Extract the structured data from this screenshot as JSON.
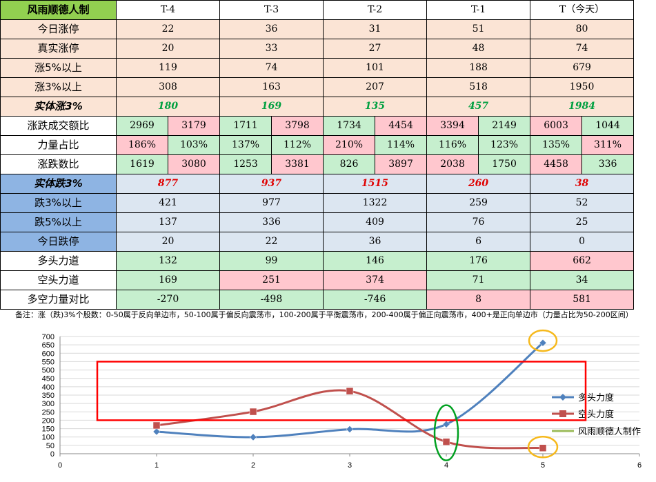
{
  "table": {
    "header": [
      "风雨顺德人制",
      "T-4",
      "T-3",
      "T-2",
      "T-1",
      "T（今天）"
    ],
    "rows_simple_top": [
      {
        "label": "今日涨停",
        "values": [
          "22",
          "36",
          "31",
          "51",
          "80"
        ]
      },
      {
        "label": "真实涨停",
        "values": [
          "20",
          "33",
          "27",
          "48",
          "74"
        ]
      },
      {
        "label": "涨5%以上",
        "values": [
          "119",
          "74",
          "101",
          "188",
          "679"
        ]
      },
      {
        "label": "涨3%以上",
        "values": [
          "308",
          "163",
          "207",
          "518",
          "1950"
        ]
      }
    ],
    "shiti_zhang": {
      "label": "实体涨3%",
      "values": [
        "180",
        "169",
        "135",
        "457",
        "1984"
      ]
    },
    "pair_rows": [
      {
        "label": "涨跌成交额比",
        "values": [
          "2969",
          "3179",
          "1711",
          "3798",
          "1734",
          "4454",
          "3394",
          "2149",
          "6003",
          "1044"
        ]
      },
      {
        "label": "力量占比",
        "values": [
          "186%",
          "103%",
          "137%",
          "112%",
          "210%",
          "114%",
          "116%",
          "123%",
          "135%",
          "311%"
        ]
      },
      {
        "label": "涨跌数比",
        "values": [
          "1619",
          "3080",
          "1253",
          "3381",
          "826",
          "3897",
          "2038",
          "1750",
          "4458",
          "336"
        ]
      }
    ],
    "shiti_die": {
      "label": "实体跌3%",
      "values": [
        "877",
        "937",
        "1515",
        "260",
        "38"
      ]
    },
    "rows_simple_bottom": [
      {
        "label": "跌3%以上",
        "values": [
          "421",
          "977",
          "1322",
          "259",
          "52"
        ]
      },
      {
        "label": "跌5%以上",
        "values": [
          "137",
          "336",
          "409",
          "76",
          "25"
        ]
      },
      {
        "label": "今日跌停",
        "values": [
          "20",
          "22",
          "36",
          "6",
          "0"
        ]
      }
    ],
    "force_rows": [
      {
        "label": "多头力道",
        "values": [
          "132",
          "99",
          "146",
          "176",
          "662"
        ]
      },
      {
        "label": "空头力道",
        "values": [
          "169",
          "251",
          "374",
          "71",
          "34"
        ]
      },
      {
        "label": "多空力量对比",
        "values": [
          "-270",
          "-498",
          "-746",
          "8",
          "581"
        ]
      }
    ]
  },
  "note": "备注：涨（跌)3%个股数：0-50属于反向单边市，50-100属于偏反向震荡市，100-200属于平衡震荡市，200-400属于偏正向震荡市，400+是正向单边市（力量占比为50-200区间）",
  "colors": {
    "bull_line": "#4f81bd",
    "bear_line": "#c0504d",
    "legend_third": "#9bbb59",
    "highlight_rect": "#ff0000",
    "circle_orange": "#f6b91c",
    "circle_green": "#00a020"
  },
  "chart_data": {
    "type": "scatter",
    "x": [
      1,
      2,
      3,
      4,
      5
    ],
    "series": [
      {
        "name": "多头力度",
        "values": [
          132,
          99,
          146,
          176,
          662
        ]
      },
      {
        "name": "空头力度",
        "values": [
          169,
          251,
          374,
          71,
          34
        ]
      },
      {
        "name": "风雨顺德人制作",
        "values": []
      }
    ],
    "xlim": [
      0,
      6
    ],
    "ylim": [
      0,
      700
    ],
    "xticks": [
      "0",
      "1",
      "2",
      "3",
      "4",
      "5",
      "6"
    ],
    "yticks": [
      "0",
      "50",
      "100",
      "150",
      "200",
      "250",
      "300",
      "350",
      "400",
      "450",
      "500",
      "550",
      "600",
      "650",
      "700"
    ],
    "smooth": true,
    "legend": "right"
  }
}
